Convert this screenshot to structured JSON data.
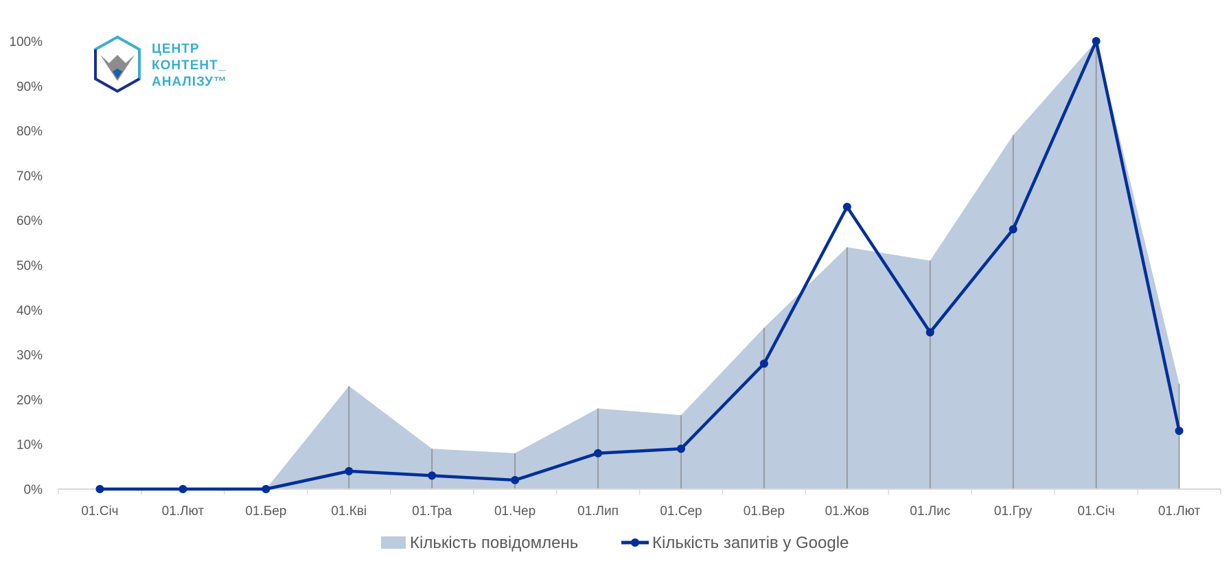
{
  "logo": {
    "lines": [
      "ЦЕНТР",
      "КОНТЕНТ_",
      "АНАЛІЗУ™"
    ]
  },
  "colors": {
    "area": "#bccbde",
    "line": "#002f9a",
    "axis": "#d9d9d9",
    "drop_line": "#8c8c8c",
    "text": "#595959",
    "logo_teal": "#3aaed0",
    "logo_navy": "#1a2f8c"
  },
  "chart_data": {
    "type": "area",
    "categories": [
      "01.Січ",
      "01.Лют",
      "01.Бер",
      "01.Кві",
      "01.Тра",
      "01.Чер",
      "01.Лип",
      "01.Сер",
      "01.Вер",
      "01.Жов",
      "01.Лис",
      "01.Гру",
      "01.Січ",
      "01.Лют"
    ],
    "series": [
      {
        "name": "Кількість повідомлень",
        "type": "area",
        "values": [
          0,
          0,
          0,
          23,
          9,
          8,
          18,
          16.5,
          36,
          54,
          51,
          79,
          100,
          23.5
        ]
      },
      {
        "name": "Кількість запитів у Google",
        "type": "line",
        "values": [
          0,
          0,
          0,
          4,
          3,
          2,
          8,
          9,
          28,
          63,
          35,
          58,
          100,
          13
        ]
      }
    ],
    "y_ticks": [
      "0%",
      "10%",
      "20%",
      "30%",
      "40%",
      "50%",
      "60%",
      "70%",
      "80%",
      "90%",
      "100%"
    ],
    "ylim": [
      0,
      100
    ],
    "drop_lines": true,
    "grid": false,
    "legend": "bottom-center"
  }
}
